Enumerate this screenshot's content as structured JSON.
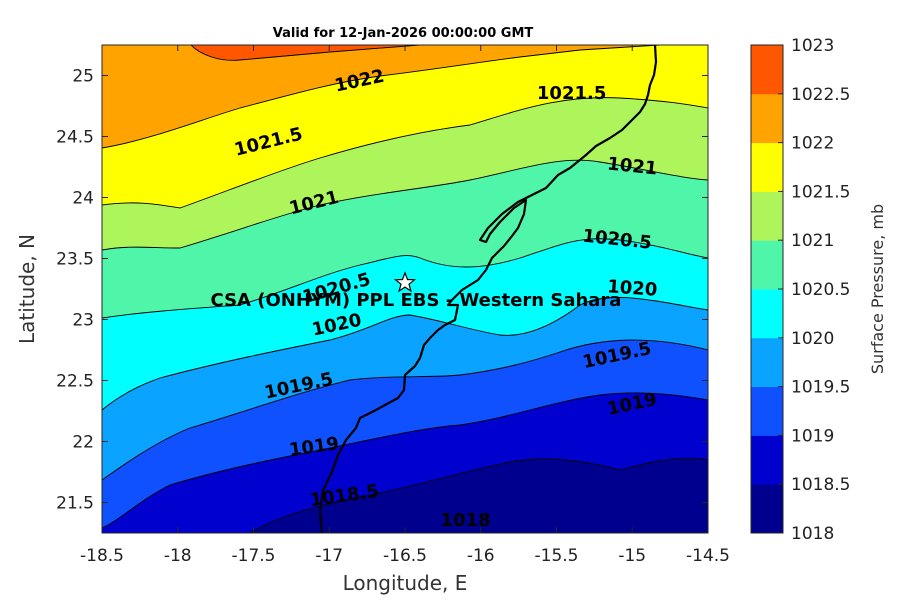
{
  "title": "Valid for 12-Jan-2026 00:00:00 GMT",
  "map": {
    "xlabel": "Longitude, E",
    "ylabel": "Latitude, N",
    "xlim": [
      -18.5,
      -14.5
    ],
    "ylim": [
      21.25,
      25.25
    ],
    "xticks": [
      "-18.5",
      "-18",
      "-17.5",
      "-17",
      "-16.5",
      "-16",
      "-15.5",
      "-15",
      "-14.5"
    ],
    "yticks": [
      "21.5",
      "22",
      "22.5",
      "23",
      "23.5",
      "24",
      "24.5",
      "25"
    ],
    "site_label": "CSA (ONHYM) PPL EBS - Western Sahara",
    "site_marker": "star-icon"
  },
  "colorbar": {
    "label": "Surface Pressure, mb",
    "ticks": [
      "1018",
      "1018.5",
      "1019",
      "1019.5",
      "1020",
      "1020.5",
      "1021",
      "1021.5",
      "1022",
      "1022.5",
      "1023"
    ],
    "colors": [
      "#00008f",
      "#0000cf",
      "#0f50ff",
      "#0aa3ff",
      "#00ffff",
      "#4ff5a8",
      "#adf55a",
      "#ffff00",
      "#ffa300",
      "#ff5700",
      "#ff0000"
    ]
  },
  "contour_labels": [
    {
      "text": "1022",
      "lon": -16.8,
      "lat": 24.95
    },
    {
      "text": "1021.5",
      "lon": -15.4,
      "lat": 24.85
    },
    {
      "text": "1021.5",
      "lon": -17.4,
      "lat": 24.45
    },
    {
      "text": "1021",
      "lon": -15.0,
      "lat": 24.25
    },
    {
      "text": "1021",
      "lon": -17.1,
      "lat": 23.95
    },
    {
      "text": "1020.5",
      "lon": -15.1,
      "lat": 23.65
    },
    {
      "text": "1020.5",
      "lon": -16.95,
      "lat": 23.25
    },
    {
      "text": "1020",
      "lon": -15.0,
      "lat": 23.25
    },
    {
      "text": "1020",
      "lon": -16.95,
      "lat": 22.95
    },
    {
      "text": "1019.5",
      "lon": -15.1,
      "lat": 22.7
    },
    {
      "text": "1019.5",
      "lon": -17.2,
      "lat": 22.45
    },
    {
      "text": "1019",
      "lon": -15.0,
      "lat": 22.3
    },
    {
      "text": "1019",
      "lon": -17.1,
      "lat": 21.95
    },
    {
      "text": "1018.5",
      "lon": -16.9,
      "lat": 21.55
    },
    {
      "text": "1018",
      "lon": -16.1,
      "lat": 21.35
    }
  ],
  "colors": {
    "axis": "#262626",
    "contour_line": "#000000"
  }
}
